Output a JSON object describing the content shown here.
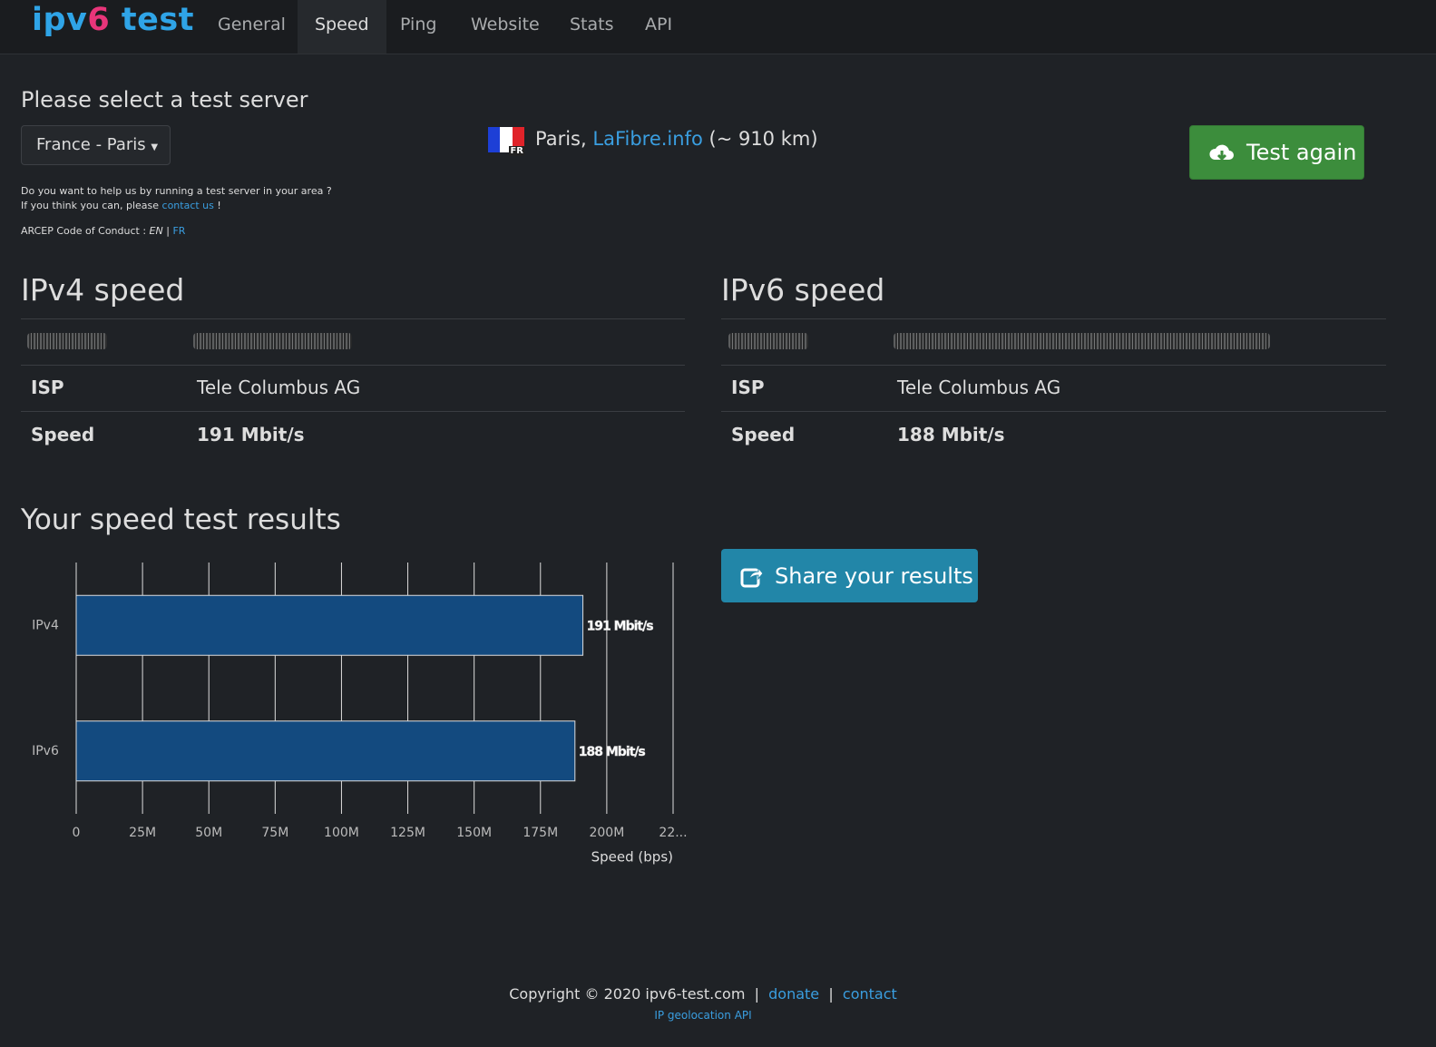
{
  "nav": {
    "logo": {
      "prefix": "ipv",
      "digit": "6",
      "suffix": "test"
    },
    "items": [
      "General",
      "Speed",
      "Ping",
      "Website",
      "Stats",
      "API"
    ],
    "active": 1
  },
  "server": {
    "heading": "Please select a test server",
    "dropdown": "France - Paris",
    "flag_code": "FR",
    "city": "Paris,",
    "provider": "LaFibre.info",
    "distance": "(~ 910 km)",
    "button": "Test again"
  },
  "help": {
    "line1": "Do you want to help us by running a test server in your area ?",
    "line2_prefix": "If you think you can, please",
    "line2_link": "contact us",
    "line2_suffix": "!",
    "arcep": "ARCEP Code of Conduct :",
    "en": "EN",
    "sep": "|",
    "fr": "FR"
  },
  "ipv4": {
    "title": "IPv4 speed",
    "rows": [
      [
        "ISP",
        "Tele Columbus AG"
      ],
      [
        "Speed",
        "191 Mbit/s"
      ]
    ]
  },
  "ipv6": {
    "title": "IPv6 speed",
    "rows": [
      [
        "ISP",
        "Tele Columbus AG"
      ],
      [
        "Speed",
        "188 Mbit/s"
      ]
    ]
  },
  "results_title": "Your speed test results",
  "share": "Share your results",
  "chart_data": {
    "type": "hbar",
    "categories": [
      "IPv4",
      "IPv6"
    ],
    "values": [
      191000000,
      188000000
    ],
    "value_labels": [
      "191 Mbit/s",
      "188 Mbit/s"
    ],
    "color": "#134a7f",
    "xlim": [
      0,
      225000000
    ],
    "xticks": [
      0,
      {
        "value": 25000000,
        "label": "25M"
      },
      {
        "value": 50000000,
        "label": "50M"
      },
      {
        "value": 75000000,
        "label": "75M"
      },
      {
        "value": 100000000,
        "label": "100M"
      },
      {
        "value": 125000000,
        "label": "125M"
      },
      {
        "value": 150000000,
        "label": "150M"
      },
      {
        "value": 175000000,
        "label": "175M"
      },
      {
        "value": 200000000,
        "label": "200M"
      },
      {
        "value": 225000000,
        "label": "22..."
      }
    ],
    "xlabel": "Speed (bps)",
    "grid": true
  },
  "footer": {
    "copyright": "Copyright © 2020 ipv6-test.com",
    "sep": "|",
    "donate": "donate",
    "contact": "contact",
    "api": "IP geolocation API"
  }
}
